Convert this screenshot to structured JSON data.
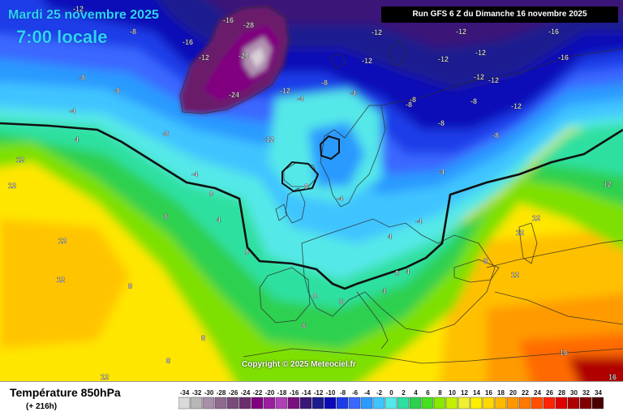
{
  "header": {
    "date_text": "Mardi 25 novembre 2025",
    "time_text": "7:00 locale",
    "run_text": "Run GFS 6 Z du Dimanche 16 novembre 2025"
  },
  "footer": {
    "parameter": "Température 850hPa",
    "lead_time": "(+ 216h)",
    "copyright": "Copyright © 2025 Meteociel.fr"
  },
  "legend": {
    "values": [
      "-34",
      "-32",
      "-30",
      "-28",
      "-26",
      "-24",
      "-22",
      "-20",
      "-18",
      "-16",
      "-14",
      "-12",
      "-10",
      "-8",
      "-6",
      "-4",
      "-2",
      "0",
      "2",
      "4",
      "6",
      "8",
      "10",
      "12",
      "14",
      "16",
      "18",
      "20",
      "22",
      "24",
      "26",
      "28",
      "30",
      "32",
      "34"
    ],
    "colors": [
      "#d9d9d9",
      "#b8b8b8",
      "#a890a8",
      "#8e6a8e",
      "#7a4a7a",
      "#6c2f6c",
      "#800080",
      "#9b1fa0",
      "#b040b8",
      "#7a1080",
      "#3a1878",
      "#1c1c90",
      "#0a0ab8",
      "#1c3ce8",
      "#3a68ff",
      "#2a9aff",
      "#3fc4ff",
      "#55e8e8",
      "#2ee0a0",
      "#2ed050",
      "#46e020",
      "#8ae800",
      "#c4f000",
      "#eef030",
      "#ffee00",
      "#ffd800",
      "#ffb800",
      "#ff9800",
      "#ff7800",
      "#ff5000",
      "#ff2400",
      "#e00000",
      "#b00000",
      "#800000",
      "#4a0000"
    ]
  },
  "map_labels": [
    {
      "text": "-12"
    },
    {
      "text": "-8"
    },
    {
      "text": "-16"
    },
    {
      "text": "-28"
    },
    {
      "text": "-20"
    },
    {
      "text": "-24"
    },
    {
      "text": "-16"
    },
    {
      "text": "-12"
    },
    {
      "text": "-12"
    },
    {
      "text": "-12"
    },
    {
      "text": "-16"
    },
    {
      "text": "-12"
    },
    {
      "text": "-16"
    },
    {
      "text": "-12"
    },
    {
      "text": "-8"
    },
    {
      "text": "-4"
    },
    {
      "text": "-8"
    },
    {
      "text": "-4"
    },
    {
      "text": "-8"
    },
    {
      "text": "-8"
    },
    {
      "text": "-12"
    },
    {
      "text": "4"
    },
    {
      "text": "12"
    },
    {
      "text": "0"
    },
    {
      "text": "-4"
    },
    {
      "text": "0"
    },
    {
      "text": "4"
    },
    {
      "text": "8"
    },
    {
      "text": "12"
    },
    {
      "text": "12"
    },
    {
      "text": "8"
    },
    {
      "text": "0"
    },
    {
      "text": "-4"
    },
    {
      "text": "4"
    },
    {
      "text": "8"
    },
    {
      "text": "12"
    },
    {
      "text": "12"
    },
    {
      "text": "16"
    },
    {
      "text": "16"
    },
    {
      "text": "12"
    },
    {
      "text": "8"
    },
    {
      "text": "4"
    },
    {
      "text": "-8"
    },
    {
      "text": "-8"
    },
    {
      "text": "-12"
    },
    {
      "text": "-8"
    },
    {
      "text": "-4"
    },
    {
      "text": "12"
    },
    {
      "text": "12"
    },
    {
      "text": "-12"
    },
    {
      "text": "-12"
    },
    {
      "text": "-8"
    },
    {
      "text": "-8"
    },
    {
      "text": "-12"
    },
    {
      "text": "-12"
    },
    {
      "text": "-4"
    },
    {
      "text": "-4"
    },
    {
      "text": "0"
    },
    {
      "text": "0"
    },
    {
      "text": "4"
    },
    {
      "text": "8"
    },
    {
      "text": "8"
    },
    {
      "text": "12"
    },
    {
      "text": "8"
    }
  ]
}
